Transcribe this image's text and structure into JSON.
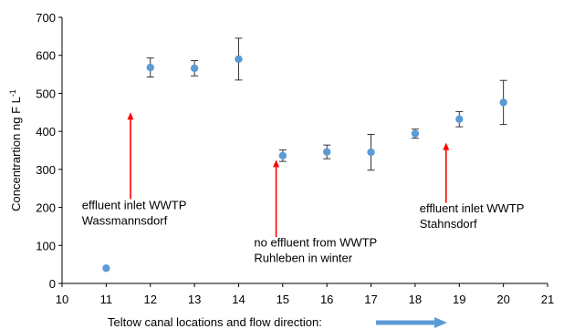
{
  "chart_data": {
    "type": "scatter",
    "title": "",
    "xlabel": "Teltow canal locations and flow direction:",
    "ylabel": "Concentrartion ng F L",
    "ylabel_superscript": "-1",
    "xlim": [
      10,
      21
    ],
    "ylim": [
      0,
      700
    ],
    "x_ticks": [
      "10",
      "11",
      "12",
      "13",
      "14",
      "15",
      "16",
      "17",
      "18",
      "19",
      "20",
      "21"
    ],
    "y_ticks": [
      "0",
      "100",
      "200",
      "300",
      "400",
      "500",
      "600",
      "700"
    ],
    "grid": false,
    "marker_color": "#5b9bd5",
    "arrow_color": "#ff0000",
    "flow_arrow_color": "#5b9bd5",
    "points": [
      {
        "x": 11,
        "y": 40,
        "err": 0
      },
      {
        "x": 12,
        "y": 568,
        "err": 25
      },
      {
        "x": 13,
        "y": 566,
        "err": 20
      },
      {
        "x": 14,
        "y": 590,
        "err": 55
      },
      {
        "x": 15,
        "y": 336,
        "err": 15
      },
      {
        "x": 16,
        "y": 346,
        "err": 18
      },
      {
        "x": 17,
        "y": 345,
        "err": 47
      },
      {
        "x": 18,
        "y": 394,
        "err": 12
      },
      {
        "x": 19,
        "y": 432,
        "err": 20
      },
      {
        "x": 20,
        "y": 476,
        "err": 58
      }
    ],
    "annotations": [
      {
        "lines": [
          "effluent inlet WWTP",
          "Wassmannsdorf"
        ],
        "anchor": "start",
        "text_x": 10.45,
        "text_y": 195,
        "arrow_x": 11.55,
        "arrow_from": 222,
        "arrow_to": 450
      },
      {
        "lines": [
          "no effluent from WWTP",
          "Ruhleben in winter"
        ],
        "anchor": "start",
        "text_x": 14.35,
        "text_y": 97,
        "arrow_x": 14.85,
        "arrow_from": 122,
        "arrow_to": 325
      },
      {
        "lines": [
          "effluent inlet WWTP",
          "Stahnsdorf"
        ],
        "anchor": "start",
        "text_x": 18.1,
        "text_y": 187,
        "arrow_x": 18.7,
        "arrow_from": 212,
        "arrow_to": 370
      }
    ]
  }
}
